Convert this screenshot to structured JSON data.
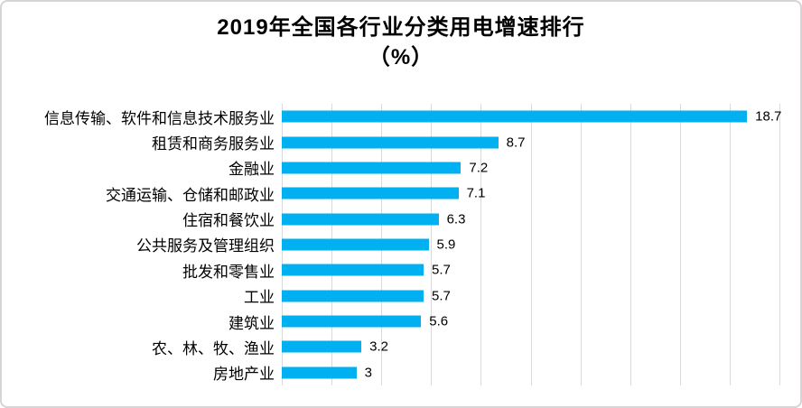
{
  "chart_data": {
    "type": "bar",
    "orientation": "horizontal",
    "title": "2019年全国各行业分类用电增速排行",
    "title_line2": "（%）",
    "categories": [
      "信息传输、软件和信息技术服务业",
      "租赁和商务服务业",
      "金融业",
      "交通运输、仓储和邮政业",
      "住宿和餐饮业",
      "公共服务及管理组织",
      "批发和零售业",
      "工业",
      "建筑业",
      "农、林、牧、渔业",
      "房地产业"
    ],
    "values": [
      18.7,
      8.7,
      7.2,
      7.1,
      6.3,
      5.9,
      5.7,
      5.7,
      5.6,
      3.2,
      3
    ],
    "value_labels": [
      "18.7",
      "8.7",
      "7.2",
      "7.1",
      "6.3",
      "5.9",
      "5.7",
      "5.7",
      "5.6",
      "3.2",
      "3"
    ],
    "xlim": [
      0,
      20
    ],
    "gridline_interval": 2,
    "grid": true,
    "legend": "none",
    "xlabel": "",
    "ylabel": "",
    "bar_color": "#00B0F0",
    "gridline_color": "#D9D9D9",
    "border_color": "#D6D4D4",
    "text_color": "#000000"
  }
}
